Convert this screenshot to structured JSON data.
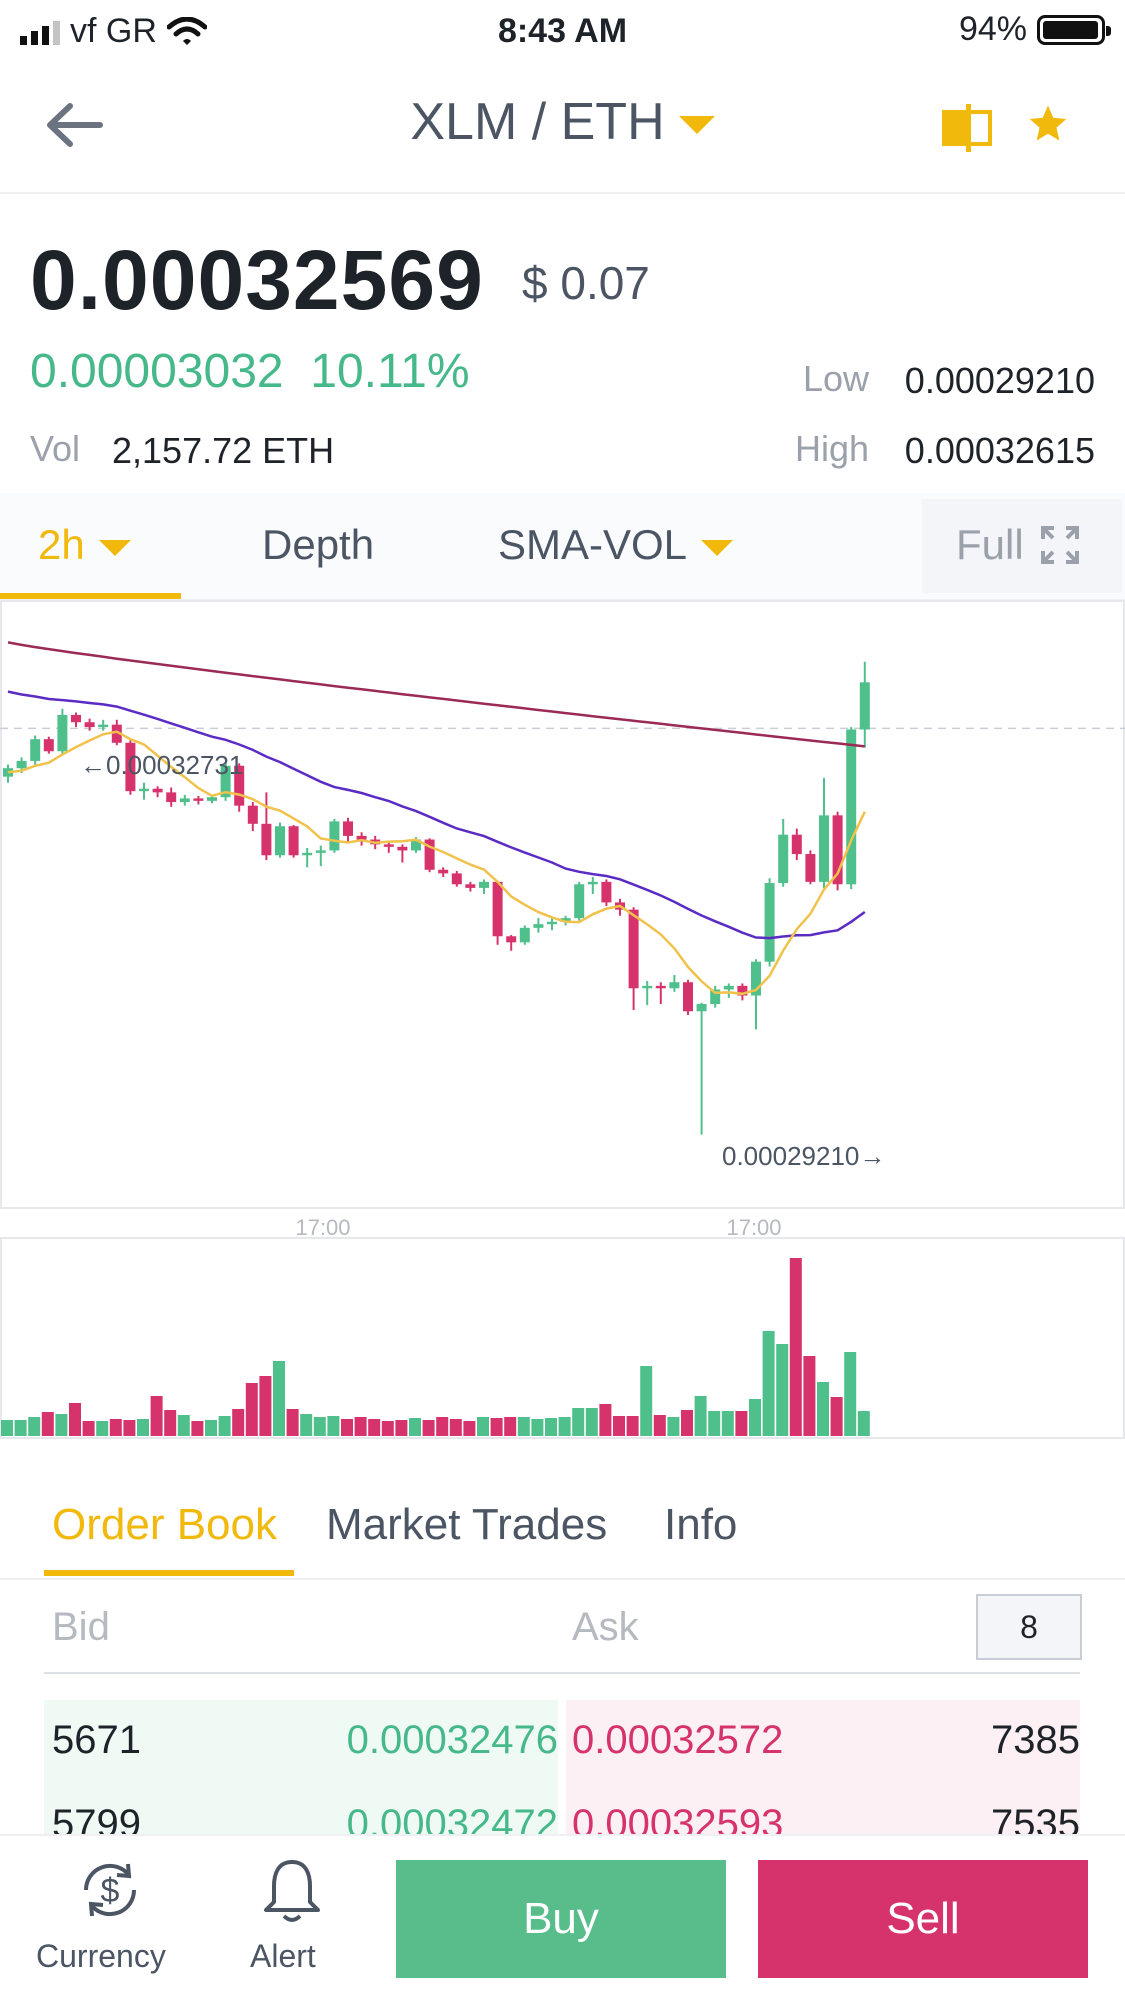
{
  "status_bar": {
    "carrier": "vf GR",
    "time": "8:43 AM",
    "battery": "94%",
    "battery_level": 0.94
  },
  "header": {
    "pair": "XLM / ETH"
  },
  "price": {
    "last": "0.00032569",
    "usd": "$ 0.07",
    "change": "0.00003032",
    "change_pct": "10.11%",
    "vol_label": "Vol",
    "vol": "2,157.72 ETH",
    "low_label": "Low",
    "low": "0.00029210",
    "high_label": "High",
    "high": "0.00032615"
  },
  "chart_tabs": {
    "interval": "2h",
    "depth": "Depth",
    "indicator": "SMA-VOL",
    "full": "Full"
  },
  "chart_data": {
    "type": "candlestick",
    "annotations": {
      "max": "←0.00032731",
      "min": "0.00029210→"
    },
    "x_ticks": [
      "17:00",
      "17:00"
    ],
    "ohlc": [
      [
        0.0003217,
        0.0003224,
        0.0003212,
        0.0003227
      ],
      [
        0.0003224,
        0.000323,
        0.000322,
        0.0003233
      ],
      [
        0.000323,
        0.0003248,
        0.0003226,
        0.0003251
      ],
      [
        0.0003248,
        0.0003238,
        0.0003236,
        0.000325
      ],
      [
        0.0003238,
        0.0003268,
        0.0003235,
        0.00032731
      ],
      [
        0.0003268,
        0.0003262,
        0.0003258,
        0.000327
      ],
      [
        0.0003262,
        0.0003258,
        0.0003255,
        0.0003265
      ],
      [
        0.0003258,
        0.000326,
        0.0003255,
        0.0003264
      ],
      [
        0.000326,
        0.0003245,
        0.0003243,
        0.0003264
      ],
      [
        0.0003245,
        0.0003205,
        0.0003202,
        0.0003247
      ],
      [
        0.0003205,
        0.0003207,
        0.0003198,
        0.0003212
      ],
      [
        0.0003207,
        0.0003204,
        0.00032,
        0.0003209
      ],
      [
        0.0003204,
        0.0003196,
        0.0003192,
        0.0003208
      ],
      [
        0.0003196,
        0.0003199,
        0.0003193,
        0.0003202
      ],
      [
        0.0003199,
        0.0003197,
        0.0003194,
        0.0003201
      ],
      [
        0.0003197,
        0.00032,
        0.0003195,
        0.0003202
      ],
      [
        0.00032,
        0.0003226,
        0.0003197,
        0.0003228
      ],
      [
        0.0003226,
        0.0003193,
        0.0003188,
        0.0003228
      ],
      [
        0.0003193,
        0.0003178,
        0.0003172,
        0.0003196
      ],
      [
        0.0003178,
        0.0003152,
        0.0003148,
        0.0003204
      ],
      [
        0.0003152,
        0.0003176,
        0.000315,
        0.0003179
      ],
      [
        0.0003176,
        0.0003152,
        0.000315,
        0.0003177
      ],
      [
        0.0003152,
        0.0003154,
        0.0003142,
        0.0003158
      ],
      [
        0.0003154,
        0.0003156,
        0.0003143,
        0.000316
      ],
      [
        0.0003156,
        0.000318,
        0.0003154,
        0.0003182
      ],
      [
        0.000318,
        0.0003168,
        0.0003162,
        0.0003183
      ],
      [
        0.0003168,
        0.0003165,
        0.000316,
        0.0003171
      ],
      [
        0.0003165,
        0.0003161,
        0.0003157,
        0.0003168
      ],
      [
        0.0003161,
        0.0003159,
        0.0003154,
        0.0003164
      ],
      [
        0.0003159,
        0.0003156,
        0.0003146,
        0.0003161
      ],
      [
        0.0003156,
        0.0003165,
        0.0003154,
        0.0003167
      ],
      [
        0.0003165,
        0.000314,
        0.0003138,
        0.0003166
      ],
      [
        0.000314,
        0.0003137,
        0.0003134,
        0.0003142
      ],
      [
        0.0003137,
        0.0003128,
        0.0003126,
        0.0003139
      ],
      [
        0.0003128,
        0.0003125,
        0.0003122,
        0.000313
      ],
      [
        0.0003125,
        0.000313,
        0.000312,
        0.0003132
      ],
      [
        0.000313,
        0.0003085,
        0.0003078,
        0.0003131
      ],
      [
        0.0003085,
        0.000308,
        0.0003073,
        0.0003086
      ],
      [
        0.000308,
        0.0003092,
        0.0003078,
        0.0003094
      ],
      [
        0.0003092,
        0.0003095,
        0.0003088,
        0.00031
      ],
      [
        0.0003095,
        0.0003097,
        0.000309,
        0.0003101
      ],
      [
        0.0003097,
        0.00031,
        0.0003094,
        0.0003102
      ],
      [
        0.00031,
        0.0003128,
        0.0003098,
        0.000313
      ],
      [
        0.0003128,
        0.000313,
        0.000312,
        0.0003134
      ],
      [
        0.000313,
        0.0003113,
        0.000311,
        0.0003132
      ],
      [
        0.0003113,
        0.0003107,
        0.0003102,
        0.0003116
      ],
      [
        0.0003107,
        0.0003042,
        0.0003024,
        0.0003109
      ],
      [
        0.0003042,
        0.0003044,
        0.0003028,
        0.0003048
      ],
      [
        0.0003044,
        0.0003042,
        0.0003029,
        0.0003047
      ],
      [
        0.0003042,
        0.0003047,
        0.0003039,
        0.0003053
      ],
      [
        0.0003047,
        0.0003023,
        0.000302,
        0.0003049
      ],
      [
        0.0003023,
        0.0003029,
        0.0002921,
        0.000303
      ],
      [
        0.0003029,
        0.0003041,
        0.0003026,
        0.0003044
      ],
      [
        0.0003041,
        0.0003044,
        0.0003034,
        0.0003046
      ],
      [
        0.0003044,
        0.0003036,
        0.0003032,
        0.0003046
      ],
      [
        0.0003036,
        0.0003064,
        0.0003008,
        0.0003066
      ],
      [
        0.0003064,
        0.0003129,
        0.000306,
        0.0003133
      ],
      [
        0.0003129,
        0.0003169,
        0.0003126,
        0.0003182
      ],
      [
        0.0003169,
        0.0003153,
        0.0003148,
        0.0003174
      ],
      [
        0.0003153,
        0.000313,
        0.0003128,
        0.0003156
      ],
      [
        0.000313,
        0.0003185,
        0.0003125,
        0.0003216
      ],
      [
        0.0003185,
        0.0003128,
        0.0003123,
        0.0003188
      ],
      [
        0.0003128,
        0.0003256,
        0.0003124,
        0.0003258
      ],
      [
        0.0003256,
        0.0003295,
        0.0003241,
        0.0003312
      ]
    ],
    "volume": [
      16,
      16,
      19,
      24,
      22,
      33,
      15,
      15,
      17,
      16,
      17,
      40,
      26,
      21,
      15,
      16,
      20,
      27,
      53,
      60,
      75,
      27,
      22,
      19,
      20,
      17,
      19,
      17,
      15,
      16,
      18,
      16,
      19,
      17,
      15,
      19,
      18,
      19,
      19,
      17,
      18,
      19,
      28,
      28,
      32,
      20,
      20,
      70,
      21,
      19,
      26,
      40,
      25,
      25,
      25,
      37,
      105,
      92,
      178,
      80,
      54,
      39,
      84,
      25
    ]
  },
  "orderbook": {
    "tabs": [
      "Order Book",
      "Market Trades",
      "Info"
    ],
    "bid_label": "Bid",
    "ask_label": "Ask",
    "precision": "8",
    "rows": [
      {
        "bid_qty": "5671",
        "bid_price": "0.00032476",
        "ask_price": "0.00032572",
        "ask_qty": "7385"
      },
      {
        "bid_qty": "5799",
        "bid_price": "0.00032472",
        "ask_price": "0.00032593",
        "ask_qty": "7535"
      }
    ]
  },
  "bottom_bar": {
    "currency": "Currency",
    "alert": "Alert",
    "buy": "Buy",
    "sell": "Sell"
  },
  "colors": {
    "up": "#4fbf8b",
    "down": "#d6336c",
    "accent": "#f0b90b",
    "buy_bg": "#58bd8a",
    "sell_bg": "#d6336c"
  }
}
